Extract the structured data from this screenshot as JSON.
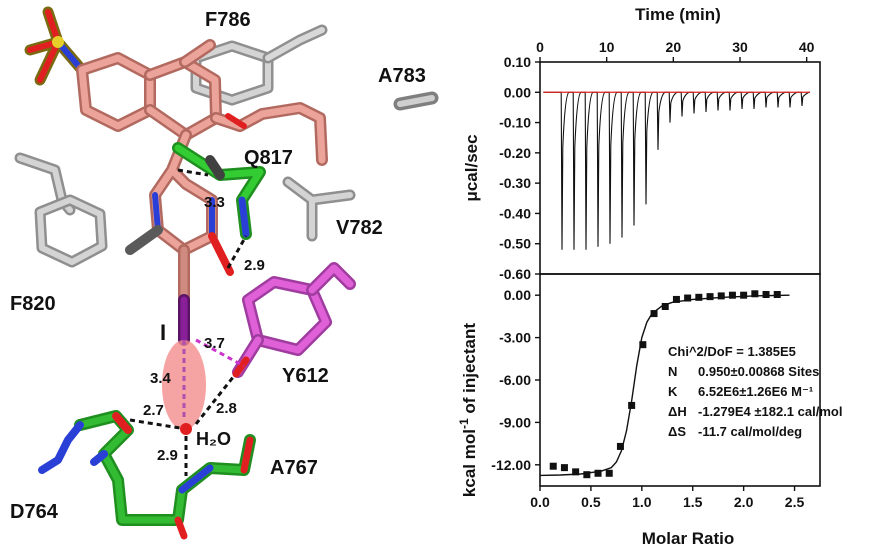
{
  "molecule_panel": {
    "residue_labels": [
      "F786",
      "A783",
      "Q817",
      "V782",
      "F820",
      "Y612",
      "A767",
      "D764"
    ],
    "atom_label_iodine": "I",
    "water_label": "H₂O",
    "distances": [
      "3.3",
      "2.9",
      "3.7",
      "3.4",
      "2.7",
      "2.8",
      "2.9"
    ],
    "colors": {
      "ligand": "#e8948a",
      "glutamine": "#33cc33",
      "tyrosine": "#e060d8",
      "aspartate": "#33bb33",
      "neutral": "#c8c8c8",
      "nitrogen": "#2a3fd6",
      "oxygen": "#e02020",
      "sulfur": "#e6cf2a",
      "iodine": "#8a1f9a",
      "water_halo": "#f48c8c"
    }
  },
  "chart_data": [
    {
      "type": "line",
      "panel": "raw-heat-trace",
      "xlabel": "Time (min)",
      "ylabel": "μcal/sec",
      "xlim": [
        0,
        42
      ],
      "ylim": [
        -0.6,
        0.1
      ],
      "xticks": [
        0,
        10,
        20,
        30,
        40
      ],
      "yticks": [
        "0.10",
        "0.00",
        "-0.10",
        "-0.20",
        "-0.30",
        "-0.40",
        "-0.50",
        "-0.60"
      ],
      "baseline_color": "#e02020",
      "series": [
        {
          "injection_times_min": [
            3.3,
            5.1,
            6.9,
            8.7,
            10.5,
            12.3,
            14.1,
            15.9,
            17.7,
            19.5,
            21.3,
            23.1,
            24.9,
            26.7,
            28.5,
            30.3,
            32.1,
            33.9,
            35.7,
            37.5,
            39.3
          ],
          "peak_min_ucal_per_sec": [
            -0.52,
            -0.52,
            -0.52,
            -0.51,
            -0.5,
            -0.48,
            -0.44,
            -0.37,
            -0.19,
            -0.1,
            -0.08,
            -0.07,
            -0.065,
            -0.06,
            -0.06,
            -0.055,
            -0.055,
            -0.05,
            -0.05,
            -0.05,
            -0.045
          ]
        }
      ]
    },
    {
      "type": "scatter",
      "panel": "binding-isotherm",
      "xlabel": "Molar Ratio",
      "ylabel_main": "kcal mol",
      "ylabel_sup": "-1",
      "ylabel_rest": " of injectant",
      "xlim": [
        0,
        2.75
      ],
      "ylim": [
        -13.5,
        1.5
      ],
      "xticks": [
        "0.0",
        "0.5",
        "1.0",
        "1.5",
        "2.0",
        "2.5"
      ],
      "yticks": [
        "0.00",
        "-3.00",
        "-6.00",
        "-9.00",
        "-12.00"
      ],
      "series": [
        {
          "x": [
            0.13,
            0.24,
            0.35,
            0.46,
            0.57,
            0.68,
            0.79,
            0.9,
            1.01,
            1.12,
            1.23,
            1.34,
            1.45,
            1.56,
            1.67,
            1.78,
            1.89,
            2.0,
            2.11,
            2.22,
            2.33
          ],
          "y": [
            -12.1,
            -12.2,
            -12.5,
            -12.7,
            -12.6,
            -12.6,
            -10.7,
            -7.8,
            -3.5,
            -1.3,
            -0.8,
            -0.3,
            -0.2,
            -0.15,
            -0.1,
            -0.05,
            0.0,
            0.0,
            0.1,
            0.05,
            0.05
          ]
        },
        {
          "x": [
            0.0,
            0.2,
            0.4,
            0.6,
            0.7,
            0.75,
            0.8,
            0.85,
            0.9,
            0.95,
            1.0,
            1.05,
            1.1,
            1.2,
            1.3,
            1.5,
            1.8,
            2.1,
            2.45
          ],
          "y": [
            -12.75,
            -12.72,
            -12.65,
            -12.45,
            -12.2,
            -11.8,
            -11.0,
            -9.6,
            -7.5,
            -5.0,
            -3.0,
            -1.9,
            -1.3,
            -0.75,
            -0.5,
            -0.3,
            -0.15,
            -0.05,
            0.0
          ]
        }
      ],
      "fit_results": [
        {
          "key": "",
          "value": "Chi^2/DoF = 1.385E5"
        },
        {
          "key": "N",
          "value": "0.950±0.00868 Sites"
        },
        {
          "key": "K",
          "value": "6.52E6±1.26E6 M⁻¹"
        },
        {
          "key": "ΔH",
          "value": "-1.279E4 ±182.1 cal/mol"
        },
        {
          "key": "ΔS",
          "value": "-11.7 cal/mol/deg"
        }
      ]
    }
  ]
}
